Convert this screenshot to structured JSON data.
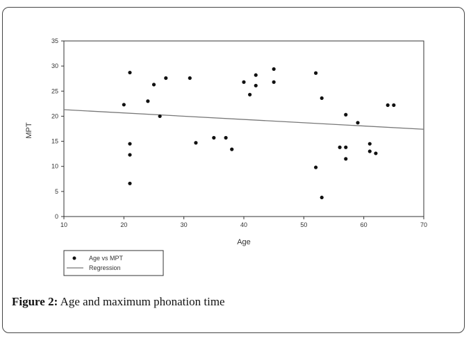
{
  "caption": {
    "label": "Figure 2:",
    "text": " Age and maximum phonation time"
  },
  "chart_data": {
    "type": "scatter",
    "title": "",
    "xlabel": "Age",
    "ylabel": "MPT",
    "xlim": [
      10,
      70
    ],
    "ylim": [
      0,
      35
    ],
    "xticks": [
      10,
      20,
      30,
      40,
      50,
      60,
      70
    ],
    "yticks": [
      0,
      5,
      10,
      15,
      20,
      25,
      30,
      35
    ],
    "grid": false,
    "legend_position": "bottom-left",
    "series": [
      {
        "name": "Age vs MPT",
        "kind": "scatter",
        "color": "#111111",
        "points": [
          [
            20,
            22.3
          ],
          [
            21,
            28.7
          ],
          [
            21,
            14.5
          ],
          [
            21,
            12.3
          ],
          [
            21,
            6.6
          ],
          [
            24,
            23
          ],
          [
            25,
            26.3
          ],
          [
            26,
            20
          ],
          [
            27,
            27.6
          ],
          [
            31,
            27.6
          ],
          [
            32,
            14.7
          ],
          [
            35,
            15.7
          ],
          [
            37,
            15.7
          ],
          [
            38,
            13.4
          ],
          [
            40,
            26.8
          ],
          [
            41,
            24.3
          ],
          [
            42,
            28.2
          ],
          [
            42,
            26.1
          ],
          [
            45,
            29.4
          ],
          [
            45,
            26.8
          ],
          [
            52,
            28.6
          ],
          [
            52,
            9.8
          ],
          [
            53,
            23.6
          ],
          [
            53,
            3.8
          ],
          [
            56,
            13.8
          ],
          [
            57,
            13.8
          ],
          [
            57,
            20.3
          ],
          [
            57,
            11.5
          ],
          [
            59,
            18.7
          ],
          [
            61,
            14.5
          ],
          [
            61,
            13
          ],
          [
            62,
            12.6
          ],
          [
            64,
            22.2
          ],
          [
            65,
            22.2
          ]
        ]
      },
      {
        "name": "Regression",
        "kind": "line",
        "color": "#777777",
        "points": [
          [
            10,
            21.3
          ],
          [
            70,
            17.4
          ]
        ]
      }
    ]
  }
}
